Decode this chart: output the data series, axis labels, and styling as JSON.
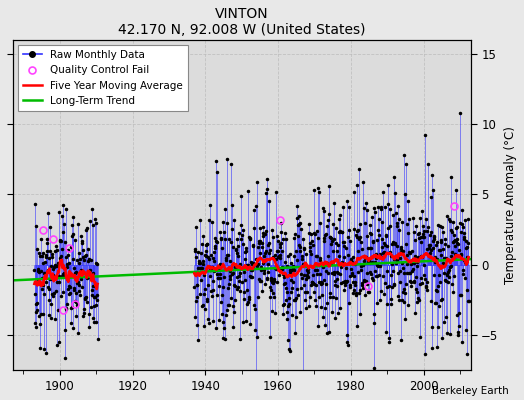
{
  "title": "VINTON",
  "subtitle": "42.170 N, 92.008 W (United States)",
  "ylabel_right": "Temperature Anomaly (°C)",
  "attribution": "Berkeley Earth",
  "xlim": [
    1887,
    2013
  ],
  "ylim": [
    -7.5,
    16
  ],
  "yticks": [
    -5,
    0,
    5,
    10,
    15
  ],
  "xticks": [
    1900,
    1920,
    1940,
    1960,
    1980,
    2000
  ],
  "bg_color": "#e8e8e8",
  "plot_bg_color": "#dcdcdc",
  "raw_color": "#3333ff",
  "moving_avg_color": "#ff0000",
  "trend_color": "#00bb00",
  "qc_fail_color": "#ff44ff",
  "seed": 123,
  "seg1_start": 1893.0,
  "seg1_end": 1905.5,
  "seg2_start": 1895.0,
  "seg2_end": 1910.5,
  "main_start": 1937.0,
  "main_end": 2012.5,
  "trend_slope": 0.012,
  "trend_intercept": -0.35,
  "moving_avg_window": 60
}
